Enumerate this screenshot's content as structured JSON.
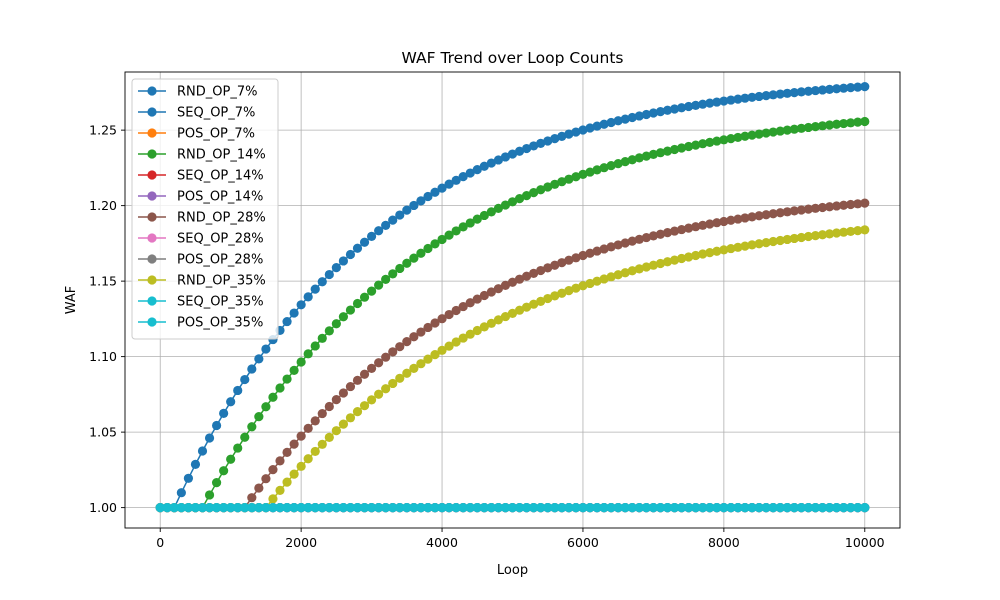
{
  "chart_data": {
    "type": "line",
    "title": "WAF Trend over Loop Counts",
    "xlabel": "Loop",
    "ylabel": "WAF",
    "xlim": [
      -500,
      10500
    ],
    "ylim": [
      0.9865,
      1.2885
    ],
    "xticks": [
      0,
      2000,
      4000,
      6000,
      8000,
      10000
    ],
    "xtick_labels": [
      "0",
      "2000",
      "4000",
      "6000",
      "8000",
      "10000"
    ],
    "yticks": [
      1.0,
      1.05,
      1.1,
      1.15,
      1.2,
      1.25
    ],
    "ytick_labels": [
      "1.00",
      "1.05",
      "1.10",
      "1.15",
      "1.20",
      "1.25"
    ],
    "grid": true,
    "legend_position": "upper-left",
    "x_sampling": {
      "start": 0,
      "end": 10000,
      "step": 100
    },
    "series": [
      {
        "name": "RND_OP_7%",
        "color": "#1f77b4",
        "marker": "circle",
        "model": {
          "x0": 200,
          "plateau": 1.2883,
          "tau": 2870
        },
        "final_value": 1.276
      },
      {
        "name": "SEQ_OP_7%",
        "color": "#1f77b4",
        "marker": "circle",
        "constant": 1.0
      },
      {
        "name": "POS_OP_7%",
        "color": "#ff7f0e",
        "marker": "circle",
        "constant": 1.0
      },
      {
        "name": "RND_OP_14%",
        "color": "#2ca02c",
        "marker": "circle",
        "model": {
          "x0": 600,
          "plateau": 1.2695,
          "tau": 3160
        },
        "final_value": 1.251
      },
      {
        "name": "SEQ_OP_14%",
        "color": "#d62728",
        "marker": "circle",
        "constant": 1.0
      },
      {
        "name": "POS_OP_14%",
        "color": "#9467bd",
        "marker": "circle",
        "constant": 1.0
      },
      {
        "name": "RND_OP_28%",
        "color": "#8c564b",
        "marker": "circle",
        "model": {
          "x0": 1200,
          "plateau": 1.2158,
          "tau": 3230
        },
        "final_value": 1.202
      },
      {
        "name": "SEQ_OP_28%",
        "color": "#e377c2",
        "marker": "circle",
        "constant": 1.0
      },
      {
        "name": "POS_OP_28%",
        "color": "#7f7f7f",
        "marker": "circle",
        "constant": 1.0
      },
      {
        "name": "RND_OP_35%",
        "color": "#bcbd22",
        "marker": "circle",
        "model": {
          "x0": 1500,
          "plateau": 1.2005,
          "tau": 3410
        },
        "final_value": 1.186
      },
      {
        "name": "SEQ_OP_35%",
        "color": "#17becf",
        "marker": "circle",
        "constant": 1.0
      },
      {
        "name": "POS_OP_35%",
        "color": "#17becf",
        "marker": "circle",
        "constant": 1.0
      }
    ]
  }
}
